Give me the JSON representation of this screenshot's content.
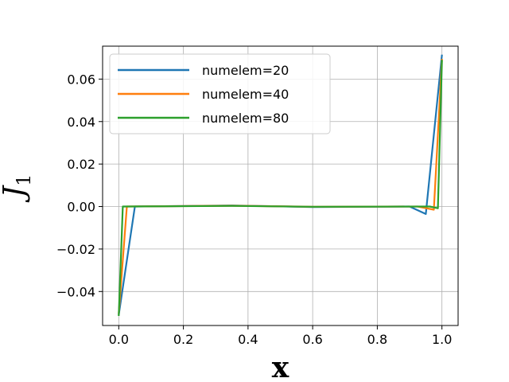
{
  "chart_data": {
    "type": "line",
    "xlabel": "x",
    "ylabel": "J",
    "ylabel_subscript": "1",
    "xlim": [
      -0.05,
      1.05
    ],
    "ylim": [
      -0.056,
      0.0755
    ],
    "xticks": [
      0.0,
      0.2,
      0.4,
      0.6,
      0.8,
      1.0
    ],
    "xtick_labels": [
      "0.0",
      "0.2",
      "0.4",
      "0.6",
      "0.8",
      "1.0"
    ],
    "yticks": [
      -0.04,
      -0.02,
      0.0,
      0.02,
      0.04,
      0.06
    ],
    "ytick_labels": [
      "−0.04",
      "−0.02",
      "0.00",
      "0.02",
      "0.04",
      "0.06"
    ],
    "grid": true,
    "legend_position": "upper-left",
    "series": [
      {
        "name": "numelem=20",
        "color": "#1f77b4",
        "x": [
          0.0,
          0.05,
          0.35,
          0.6,
          0.9,
          0.95,
          1.0
        ],
        "y": [
          -0.051,
          0.0,
          0.0005,
          -0.0002,
          0.0,
          -0.0035,
          0.0715
        ]
      },
      {
        "name": "numelem=40",
        "color": "#ff7f0e",
        "x": [
          0.0,
          0.025,
          0.35,
          0.6,
          0.925,
          0.975,
          1.0
        ],
        "y": [
          -0.0505,
          0.0,
          0.0004,
          -0.0001,
          0.0,
          -0.0015,
          0.0695
        ]
      },
      {
        "name": "numelem=80",
        "color": "#2ca02c",
        "x": [
          0.0,
          0.0125,
          0.35,
          0.6,
          0.9625,
          0.9875,
          1.0
        ],
        "y": [
          -0.0515,
          0.0,
          0.0003,
          -0.0001,
          0.0,
          -0.0008,
          0.069
        ]
      }
    ]
  }
}
